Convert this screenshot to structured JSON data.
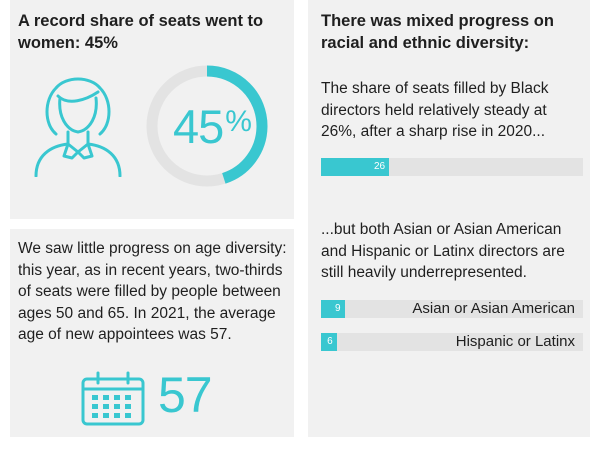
{
  "colors": {
    "accent": "#39c7d0",
    "track": "#e3e3e3",
    "panel": "#f1f1f1",
    "text": "#1f1f1f"
  },
  "women": {
    "title": "A record share of seats went to women: 45%",
    "percent_value": 45,
    "percent_label": "45",
    "percent_sign": "%",
    "icon": "woman-icon"
  },
  "age": {
    "text": "We saw little progress on age diversity: this year, as in recent years, two-thirds of seats were filled by people between ages 50 and 65. In 2021, the average age of new appointees was 57.",
    "number": "57",
    "icon": "calendar-icon"
  },
  "race": {
    "title": "There was mixed progress on racial and ethnic diversity:",
    "black_text": "The share of seats filled by Black directors held relatively steady at 26%, after a sharp rise in 2020...",
    "underrep_text": "...but both Asian or Asian American and Hispanic or Latinx directors are still heavily underrepresented."
  },
  "chart_data": {
    "type": "bar",
    "orientation": "horizontal",
    "xlim": [
      0,
      100
    ],
    "bars": [
      {
        "value": 26,
        "label_text": "26",
        "name": ""
      },
      {
        "value": 9,
        "label_text": "9",
        "name": "Asian or Asian American"
      },
      {
        "value": 6,
        "label_text": "6",
        "name": "Hispanic or Latinx"
      }
    ]
  }
}
